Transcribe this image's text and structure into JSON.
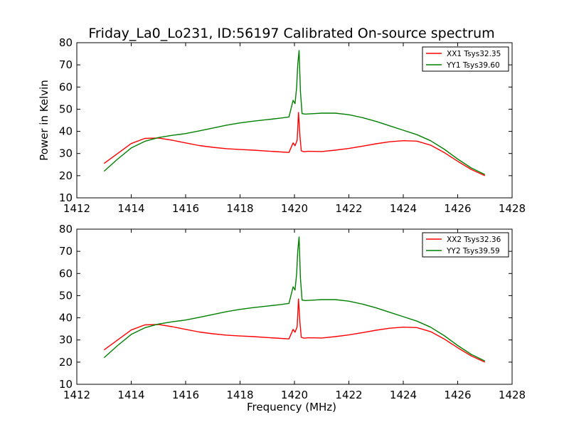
{
  "title": "Friday_La0_Lo231, ID:56197 Calibrated On-source spectrum",
  "chart_data": [
    {
      "type": "line",
      "xlabel": "",
      "ylabel": "Power in Kelvin",
      "xlim": [
        1412,
        1428
      ],
      "ylim": [
        10,
        80
      ],
      "xticks": [
        "1412",
        "1414",
        "1416",
        "1418",
        "1420",
        "1422",
        "1424",
        "1426",
        "1428"
      ],
      "yticks": [
        "10",
        "20",
        "30",
        "40",
        "50",
        "60",
        "70",
        "80"
      ],
      "legend_position": "top-right",
      "series": [
        {
          "name": "XX1 Tsys32.35",
          "color": "#ff0000",
          "x": [
            1413.0,
            1413.5,
            1414.0,
            1414.5,
            1415.0,
            1415.5,
            1416.0,
            1416.5,
            1417.0,
            1417.5,
            1418.0,
            1418.5,
            1419.0,
            1419.5,
            1419.8,
            1419.95,
            1420.02,
            1420.1,
            1420.15,
            1420.2,
            1420.25,
            1420.35,
            1420.5,
            1421.0,
            1421.5,
            1422.0,
            1422.5,
            1423.0,
            1423.5,
            1424.0,
            1424.5,
            1425.0,
            1425.5,
            1426.0,
            1426.5,
            1427.0
          ],
          "y": [
            25.5,
            30.0,
            34.5,
            36.8,
            37.0,
            36.0,
            34.8,
            33.6,
            32.8,
            32.2,
            31.8,
            31.5,
            31.1,
            30.7,
            30.5,
            34.8,
            33.5,
            36.0,
            48.5,
            38.0,
            31.2,
            30.8,
            31.0,
            30.9,
            31.5,
            32.3,
            33.3,
            34.4,
            35.3,
            35.8,
            35.6,
            33.8,
            30.5,
            26.5,
            22.8,
            20.0
          ]
        },
        {
          "name": "YY1 Tsys39.60",
          "color": "#008000",
          "x": [
            1413.0,
            1413.5,
            1414.0,
            1414.5,
            1415.0,
            1415.5,
            1416.0,
            1416.5,
            1417.0,
            1417.5,
            1418.0,
            1418.5,
            1419.0,
            1419.5,
            1419.8,
            1419.95,
            1420.02,
            1420.08,
            1420.12,
            1420.17,
            1420.22,
            1420.28,
            1420.4,
            1420.7,
            1421.0,
            1421.5,
            1422.0,
            1422.5,
            1423.0,
            1423.5,
            1424.0,
            1424.5,
            1425.0,
            1425.5,
            1426.0,
            1426.5,
            1427.0
          ],
          "y": [
            22.0,
            27.5,
            32.5,
            35.5,
            37.2,
            38.2,
            39.0,
            40.2,
            41.5,
            42.8,
            43.8,
            44.6,
            45.3,
            46.0,
            46.5,
            54.0,
            52.5,
            60.0,
            70.0,
            76.5,
            58.0,
            48.0,
            47.8,
            48.0,
            48.2,
            48.2,
            47.5,
            46.2,
            44.5,
            42.5,
            40.5,
            38.5,
            35.8,
            32.0,
            27.5,
            23.5,
            20.5
          ]
        }
      ]
    },
    {
      "type": "line",
      "xlabel": "Frequency (MHz)",
      "ylabel": "",
      "xlim": [
        1412,
        1428
      ],
      "ylim": [
        10,
        80
      ],
      "xticks": [
        "1412",
        "1414",
        "1416",
        "1418",
        "1420",
        "1422",
        "1424",
        "1426",
        "1428"
      ],
      "yticks": [
        "10",
        "20",
        "30",
        "40",
        "50",
        "60",
        "70",
        "80"
      ],
      "legend_position": "top-right",
      "series": [
        {
          "name": "XX2 Tsys32.36",
          "color": "#ff0000",
          "x": [
            1413.0,
            1413.5,
            1414.0,
            1414.5,
            1415.0,
            1415.5,
            1416.0,
            1416.5,
            1417.0,
            1417.5,
            1418.0,
            1418.5,
            1419.0,
            1419.5,
            1419.8,
            1419.95,
            1420.02,
            1420.1,
            1420.15,
            1420.2,
            1420.25,
            1420.35,
            1420.5,
            1421.0,
            1421.5,
            1422.0,
            1422.5,
            1423.0,
            1423.5,
            1424.0,
            1424.5,
            1425.0,
            1425.5,
            1426.0,
            1426.5,
            1427.0
          ],
          "y": [
            25.5,
            30.0,
            34.5,
            36.8,
            37.0,
            36.0,
            34.8,
            33.6,
            32.8,
            32.2,
            31.8,
            31.5,
            31.1,
            30.7,
            30.5,
            34.8,
            33.5,
            36.0,
            48.5,
            38.0,
            31.2,
            30.8,
            31.0,
            30.9,
            31.5,
            32.3,
            33.3,
            34.4,
            35.3,
            35.8,
            35.6,
            33.8,
            30.5,
            26.5,
            22.8,
            20.0
          ]
        },
        {
          "name": "YY2 Tsys39.59",
          "color": "#008000",
          "x": [
            1413.0,
            1413.5,
            1414.0,
            1414.5,
            1415.0,
            1415.5,
            1416.0,
            1416.5,
            1417.0,
            1417.5,
            1418.0,
            1418.5,
            1419.0,
            1419.5,
            1419.8,
            1419.95,
            1420.02,
            1420.08,
            1420.12,
            1420.17,
            1420.22,
            1420.28,
            1420.4,
            1420.7,
            1421.0,
            1421.5,
            1422.0,
            1422.5,
            1423.0,
            1423.5,
            1424.0,
            1424.5,
            1425.0,
            1425.5,
            1426.0,
            1426.5,
            1427.0
          ],
          "y": [
            22.0,
            27.5,
            32.5,
            35.5,
            37.2,
            38.2,
            39.0,
            40.2,
            41.5,
            42.8,
            43.8,
            44.6,
            45.3,
            46.0,
            46.5,
            54.0,
            52.5,
            60.0,
            70.0,
            76.5,
            58.0,
            48.0,
            47.8,
            48.0,
            48.2,
            48.2,
            47.5,
            46.2,
            44.5,
            42.5,
            40.5,
            38.5,
            35.8,
            32.0,
            27.5,
            23.5,
            20.5
          ]
        }
      ]
    }
  ]
}
